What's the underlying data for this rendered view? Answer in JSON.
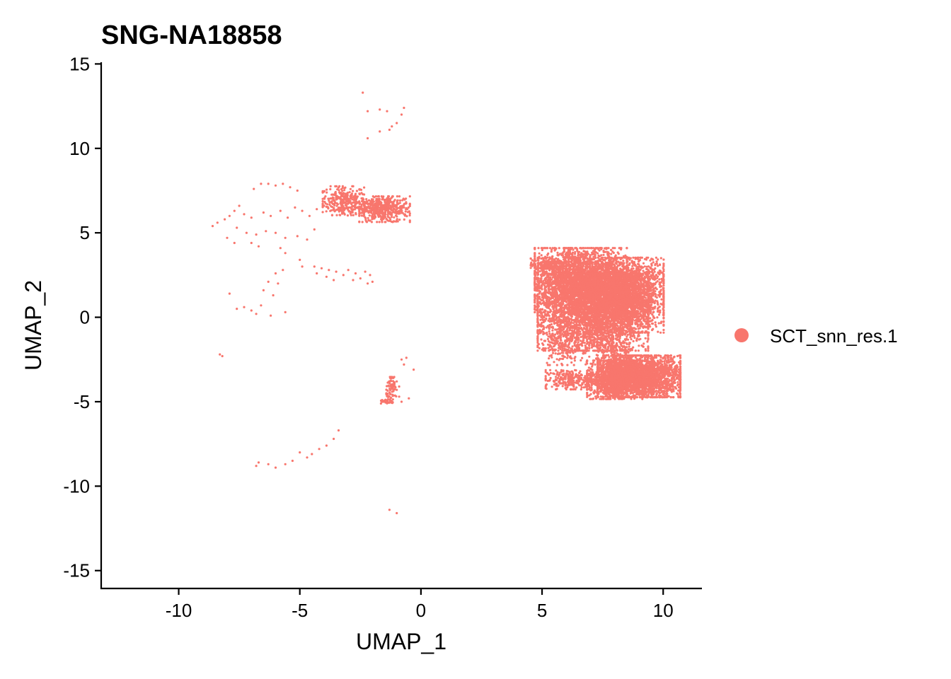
{
  "chart_data": {
    "type": "scatter",
    "title": "SNG-NA18858",
    "xlabel": "UMAP_1",
    "ylabel": "UMAP_2",
    "xlim": [
      -13.2,
      11.6
    ],
    "ylim": [
      -16.1,
      15.1
    ],
    "xticks": [
      -10,
      -5,
      0,
      5,
      10
    ],
    "yticks": [
      15,
      10,
      5,
      0,
      -5,
      -10,
      -15
    ],
    "xtick_labels": [
      "-10",
      "-5",
      "0",
      "5",
      "10"
    ],
    "ytick_labels": [
      "15",
      "10",
      "5",
      "0",
      "-5",
      "-10",
      "-15"
    ],
    "grid": false,
    "legend_position": "right",
    "series": [
      {
        "name": "SCT_snn_res.1",
        "color": "#F8766D",
        "points": [
          [
            -2.4,
            13.3
          ],
          [
            -2.2,
            12.2
          ],
          [
            -1.7,
            12.3
          ],
          [
            -1.4,
            12.2
          ],
          [
            -0.7,
            12.4
          ],
          [
            -0.8,
            12.0
          ],
          [
            -1.0,
            11.5
          ],
          [
            -1.2,
            11.3
          ],
          [
            -1.3,
            11.1
          ],
          [
            -1.7,
            11.0
          ],
          [
            -2.2,
            10.6
          ],
          [
            -6.6,
            7.9
          ],
          [
            -6.3,
            7.9
          ],
          [
            -6.0,
            7.8
          ],
          [
            -5.7,
            7.9
          ],
          [
            -5.4,
            7.7
          ],
          [
            -5.1,
            7.5
          ],
          [
            -6.9,
            7.6
          ],
          [
            -7.5,
            6.6
          ],
          [
            -7.7,
            6.3
          ],
          [
            -7.9,
            6.0
          ],
          [
            -8.1,
            5.8
          ],
          [
            -8.4,
            5.6
          ],
          [
            -8.6,
            5.4
          ],
          [
            -7.3,
            6.1
          ],
          [
            -7.0,
            5.9
          ],
          [
            -6.5,
            6.2
          ],
          [
            -6.2,
            6.0
          ],
          [
            -5.8,
            6.3
          ],
          [
            -5.5,
            5.9
          ],
          [
            -5.2,
            6.5
          ],
          [
            -4.9,
            6.3
          ],
          [
            -4.6,
            6.0
          ],
          [
            -4.3,
            6.4
          ],
          [
            -4.0,
            6.6
          ],
          [
            -3.8,
            6.9
          ],
          [
            -7.6,
            5.3
          ],
          [
            -7.2,
            5.0
          ],
          [
            -6.8,
            4.9
          ],
          [
            -6.4,
            5.1
          ],
          [
            -6.0,
            5.0
          ],
          [
            -5.6,
            4.7
          ],
          [
            -5.1,
            4.8
          ],
          [
            -4.7,
            4.6
          ],
          [
            -4.4,
            5.2
          ],
          [
            -8.0,
            4.7
          ],
          [
            -7.7,
            4.4
          ],
          [
            -7.0,
            4.4
          ],
          [
            -6.7,
            4.2
          ],
          [
            -5.8,
            4.1
          ],
          [
            -5.6,
            3.8
          ],
          [
            -5.0,
            3.4
          ],
          [
            -4.9,
            3.0
          ],
          [
            -7.9,
            1.4
          ],
          [
            -7.6,
            0.5
          ],
          [
            -7.3,
            0.6
          ],
          [
            -7.0,
            0.4
          ],
          [
            -6.8,
            0.2
          ],
          [
            -6.5,
            1.6
          ],
          [
            -6.3,
            2.1
          ],
          [
            -6.0,
            2.6
          ],
          [
            -6.1,
            1.3
          ],
          [
            -6.6,
            0.7
          ],
          [
            -6.2,
            0.1
          ],
          [
            -5.9,
            2.0
          ],
          [
            -5.7,
            2.8
          ],
          [
            -5.6,
            0.3
          ],
          [
            -8.3,
            -2.2
          ],
          [
            -8.2,
            -2.3
          ],
          [
            -4.4,
            3.0
          ],
          [
            -4.1,
            2.9
          ],
          [
            -3.8,
            2.8
          ],
          [
            -3.5,
            2.7
          ],
          [
            -3.2,
            2.5
          ],
          [
            -3.0,
            2.8
          ],
          [
            -2.7,
            2.6
          ],
          [
            -2.5,
            2.3
          ],
          [
            -2.2,
            2.0
          ],
          [
            -2.0,
            2.1
          ],
          [
            -2.3,
            2.7
          ],
          [
            -3.6,
            2.2
          ],
          [
            -3.9,
            2.4
          ],
          [
            -2.8,
            2.2
          ],
          [
            -2.1,
            2.5
          ],
          [
            -4.3,
            2.6
          ],
          [
            -0.8,
            -2.5
          ],
          [
            -0.6,
            -2.4
          ],
          [
            -0.7,
            -2.8
          ],
          [
            -0.3,
            -3.1
          ],
          [
            -1.1,
            -4.0
          ],
          [
            -1.0,
            -4.3
          ],
          [
            -0.9,
            -4.7
          ],
          [
            -0.8,
            -5.0
          ],
          [
            -0.5,
            -4.8
          ],
          [
            -1.6,
            -4.9
          ],
          [
            -1.4,
            -5.1
          ],
          [
            -1.2,
            -5.0
          ],
          [
            -1.3,
            -4.7
          ],
          [
            -1.0,
            -3.8
          ],
          [
            -0.9,
            -4.1
          ],
          [
            -3.4,
            -6.7
          ],
          [
            -3.6,
            -7.2
          ],
          [
            -3.9,
            -7.6
          ],
          [
            -4.2,
            -7.8
          ],
          [
            -4.5,
            -8.1
          ],
          [
            -4.7,
            -8.3
          ],
          [
            -5.0,
            -8.0
          ],
          [
            -5.3,
            -8.5
          ],
          [
            -5.6,
            -8.7
          ],
          [
            -6.0,
            -8.9
          ],
          [
            -6.3,
            -8.7
          ],
          [
            -6.7,
            -8.6
          ],
          [
            -6.8,
            -8.8
          ],
          [
            -1.3,
            -11.4
          ],
          [
            -1.0,
            -11.6
          ]
        ],
        "clusters": [
          {
            "center": [
              -3.2,
              6.9
            ],
            "spread": [
              0.45,
              0.45
            ],
            "count": 280
          },
          {
            "center": [
              -1.5,
              6.4
            ],
            "spread": [
              0.55,
              0.4
            ],
            "count": 420
          },
          {
            "center": [
              -2.3,
              6.5
            ],
            "spread": [
              0.5,
              0.25
            ],
            "count": 120
          },
          {
            "center": [
              6.6,
              2.2
            ],
            "spread": [
              1.0,
              1.0
            ],
            "count": 2600
          },
          {
            "center": [
              8.5,
              2.2
            ],
            "spread": [
              0.8,
              0.7
            ],
            "count": 1100
          },
          {
            "center": [
              7.1,
              0.3
            ],
            "spread": [
              1.2,
              1.2
            ],
            "count": 3200
          },
          {
            "center": [
              8.5,
              0.8
            ],
            "spread": [
              0.8,
              0.9
            ],
            "count": 1200
          },
          {
            "center": [
              9.0,
              -3.5
            ],
            "spread": [
              0.9,
              0.65
            ],
            "count": 2600
          },
          {
            "center": [
              8.0,
              -3.7
            ],
            "spread": [
              0.6,
              0.6
            ],
            "count": 900
          },
          {
            "center": [
              6.1,
              -3.7
            ],
            "spread": [
              0.5,
              0.3
            ],
            "count": 250
          },
          {
            "center": [
              5.2,
              3.1
            ],
            "spread": [
              0.35,
              0.2
            ],
            "count": 160
          },
          {
            "center": [
              6.0,
              -1.5
            ],
            "spread": [
              0.5,
              0.7
            ],
            "count": 220
          },
          {
            "center": [
              7.9,
              -2.0
            ],
            "spread": [
              0.35,
              0.5
            ],
            "count": 180
          },
          {
            "center": [
              -1.2,
              -4.2
            ],
            "spread": [
              0.12,
              0.35
            ],
            "count": 70
          },
          {
            "center": [
              -1.4,
              -5.0
            ],
            "spread": [
              0.15,
              0.06
            ],
            "count": 35
          }
        ]
      }
    ]
  }
}
